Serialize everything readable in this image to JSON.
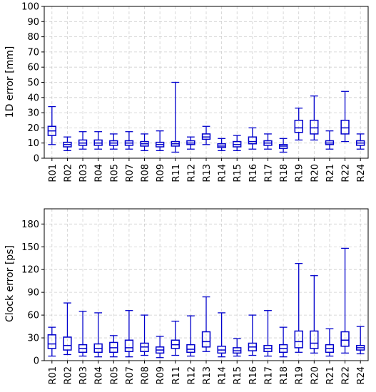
{
  "chart_data": [
    {
      "type": "boxplot",
      "ylabel": "1D error [mm]",
      "xlabel": "",
      "ylim": [
        0,
        100
      ],
      "yticks": [
        0,
        10,
        20,
        30,
        40,
        50,
        60,
        70,
        80,
        90,
        100
      ],
      "grid": true,
      "color": "#0000cc",
      "categories": [
        "R01",
        "R02",
        "R03",
        "R04",
        "R05",
        "R07",
        "R08",
        "R09",
        "R11",
        "R12",
        "R13",
        "R14",
        "R15",
        "R16",
        "R17",
        "R18",
        "R19",
        "R20",
        "R21",
        "R22",
        "R24"
      ],
      "boxes": [
        {
          "min": 9,
          "q1": 15,
          "median": 18,
          "q3": 21,
          "max": 34
        },
        {
          "min": 5,
          "q1": 7.5,
          "median": 9,
          "q3": 10.5,
          "max": 14
        },
        {
          "min": 6,
          "q1": 8.5,
          "median": 10,
          "q3": 12,
          "max": 17.5
        },
        {
          "min": 6,
          "q1": 8.5,
          "median": 10,
          "q3": 12,
          "max": 17.5
        },
        {
          "min": 6,
          "q1": 8.5,
          "median": 10,
          "q3": 11.5,
          "max": 16
        },
        {
          "min": 6,
          "q1": 8.5,
          "median": 10,
          "q3": 11.5,
          "max": 17.5
        },
        {
          "min": 5,
          "q1": 8,
          "median": 9.5,
          "q3": 11,
          "max": 16
        },
        {
          "min": 5,
          "q1": 7.5,
          "median": 9,
          "q3": 10.5,
          "max": 18
        },
        {
          "min": 4,
          "q1": 8,
          "median": 9.5,
          "q3": 11,
          "max": 50
        },
        {
          "min": 6,
          "q1": 9,
          "median": 10,
          "q3": 11.5,
          "max": 14
        },
        {
          "min": 9,
          "q1": 12.5,
          "median": 14,
          "q3": 16,
          "max": 21
        },
        {
          "min": 5,
          "q1": 7,
          "median": 8,
          "q3": 9.5,
          "max": 13
        },
        {
          "min": 5,
          "q1": 7.5,
          "median": 9,
          "q3": 11,
          "max": 15
        },
        {
          "min": 6,
          "q1": 9.5,
          "median": 11,
          "q3": 14,
          "max": 20
        },
        {
          "min": 6,
          "q1": 8.5,
          "median": 10,
          "q3": 11.5,
          "max": 16
        },
        {
          "min": 4,
          "q1": 6.5,
          "median": 8,
          "q3": 9,
          "max": 13
        },
        {
          "min": 12,
          "q1": 17,
          "median": 20,
          "q3": 25,
          "max": 33
        },
        {
          "min": 12,
          "q1": 16,
          "median": 20,
          "q3": 25,
          "max": 41
        },
        {
          "min": 6,
          "q1": 9,
          "median": 10,
          "q3": 11.5,
          "max": 18
        },
        {
          "min": 11,
          "q1": 16,
          "median": 20,
          "q3": 25,
          "max": 44
        },
        {
          "min": 6,
          "q1": 8.5,
          "median": 10,
          "q3": 11.5,
          "max": 16
        }
      ]
    },
    {
      "type": "boxplot",
      "ylabel": "Clock error [ps]",
      "xlabel": "",
      "ylim": [
        0,
        200
      ],
      "yticks": [
        0,
        30,
        60,
        90,
        120,
        150,
        180
      ],
      "grid": true,
      "color": "#0000cc",
      "categories": [
        "R01",
        "R02",
        "R03",
        "R04",
        "R05",
        "R07",
        "R08",
        "R09",
        "R11",
        "R12",
        "R13",
        "R14",
        "R15",
        "R16",
        "R17",
        "R18",
        "R19",
        "R20",
        "R21",
        "R22",
        "R24"
      ],
      "boxes": [
        {
          "min": 6,
          "q1": 16,
          "median": 22,
          "q3": 34,
          "max": 44
        },
        {
          "min": 8,
          "q1": 14,
          "median": 20,
          "q3": 31,
          "max": 76
        },
        {
          "min": 6,
          "q1": 11,
          "median": 16,
          "q3": 21,
          "max": 65
        },
        {
          "min": 5,
          "q1": 11,
          "median": 16,
          "q3": 22,
          "max": 63
        },
        {
          "min": 5,
          "q1": 11,
          "median": 17,
          "q3": 24,
          "max": 33
        },
        {
          "min": 5,
          "q1": 12,
          "median": 17,
          "q3": 27,
          "max": 66
        },
        {
          "min": 7,
          "q1": 12,
          "median": 18,
          "q3": 23,
          "max": 60
        },
        {
          "min": 4,
          "q1": 10,
          "median": 14,
          "q3": 18,
          "max": 32
        },
        {
          "min": 7,
          "q1": 16,
          "median": 21,
          "q3": 27,
          "max": 52
        },
        {
          "min": 6,
          "q1": 11,
          "median": 15,
          "q3": 21,
          "max": 59
        },
        {
          "min": 12,
          "q1": 18,
          "median": 25,
          "q3": 38,
          "max": 84
        },
        {
          "min": 5,
          "q1": 10,
          "median": 14,
          "q3": 19,
          "max": 63
        },
        {
          "min": 6,
          "q1": 10,
          "median": 13,
          "q3": 17,
          "max": 29
        },
        {
          "min": 7,
          "q1": 13,
          "median": 18,
          "q3": 23,
          "max": 60
        },
        {
          "min": 6,
          "q1": 12,
          "median": 16,
          "q3": 20,
          "max": 66
        },
        {
          "min": 5,
          "q1": 11,
          "median": 16,
          "q3": 21,
          "max": 44
        },
        {
          "min": 11,
          "q1": 17,
          "median": 25,
          "q3": 39,
          "max": 128
        },
        {
          "min": 10,
          "q1": 16,
          "median": 23,
          "q3": 39,
          "max": 112
        },
        {
          "min": 6,
          "q1": 11,
          "median": 16,
          "q3": 21,
          "max": 42
        },
        {
          "min": 10,
          "q1": 19,
          "median": 27,
          "q3": 38,
          "max": 148
        },
        {
          "min": 9,
          "q1": 14,
          "median": 17,
          "q3": 20,
          "max": 45
        }
      ]
    }
  ]
}
